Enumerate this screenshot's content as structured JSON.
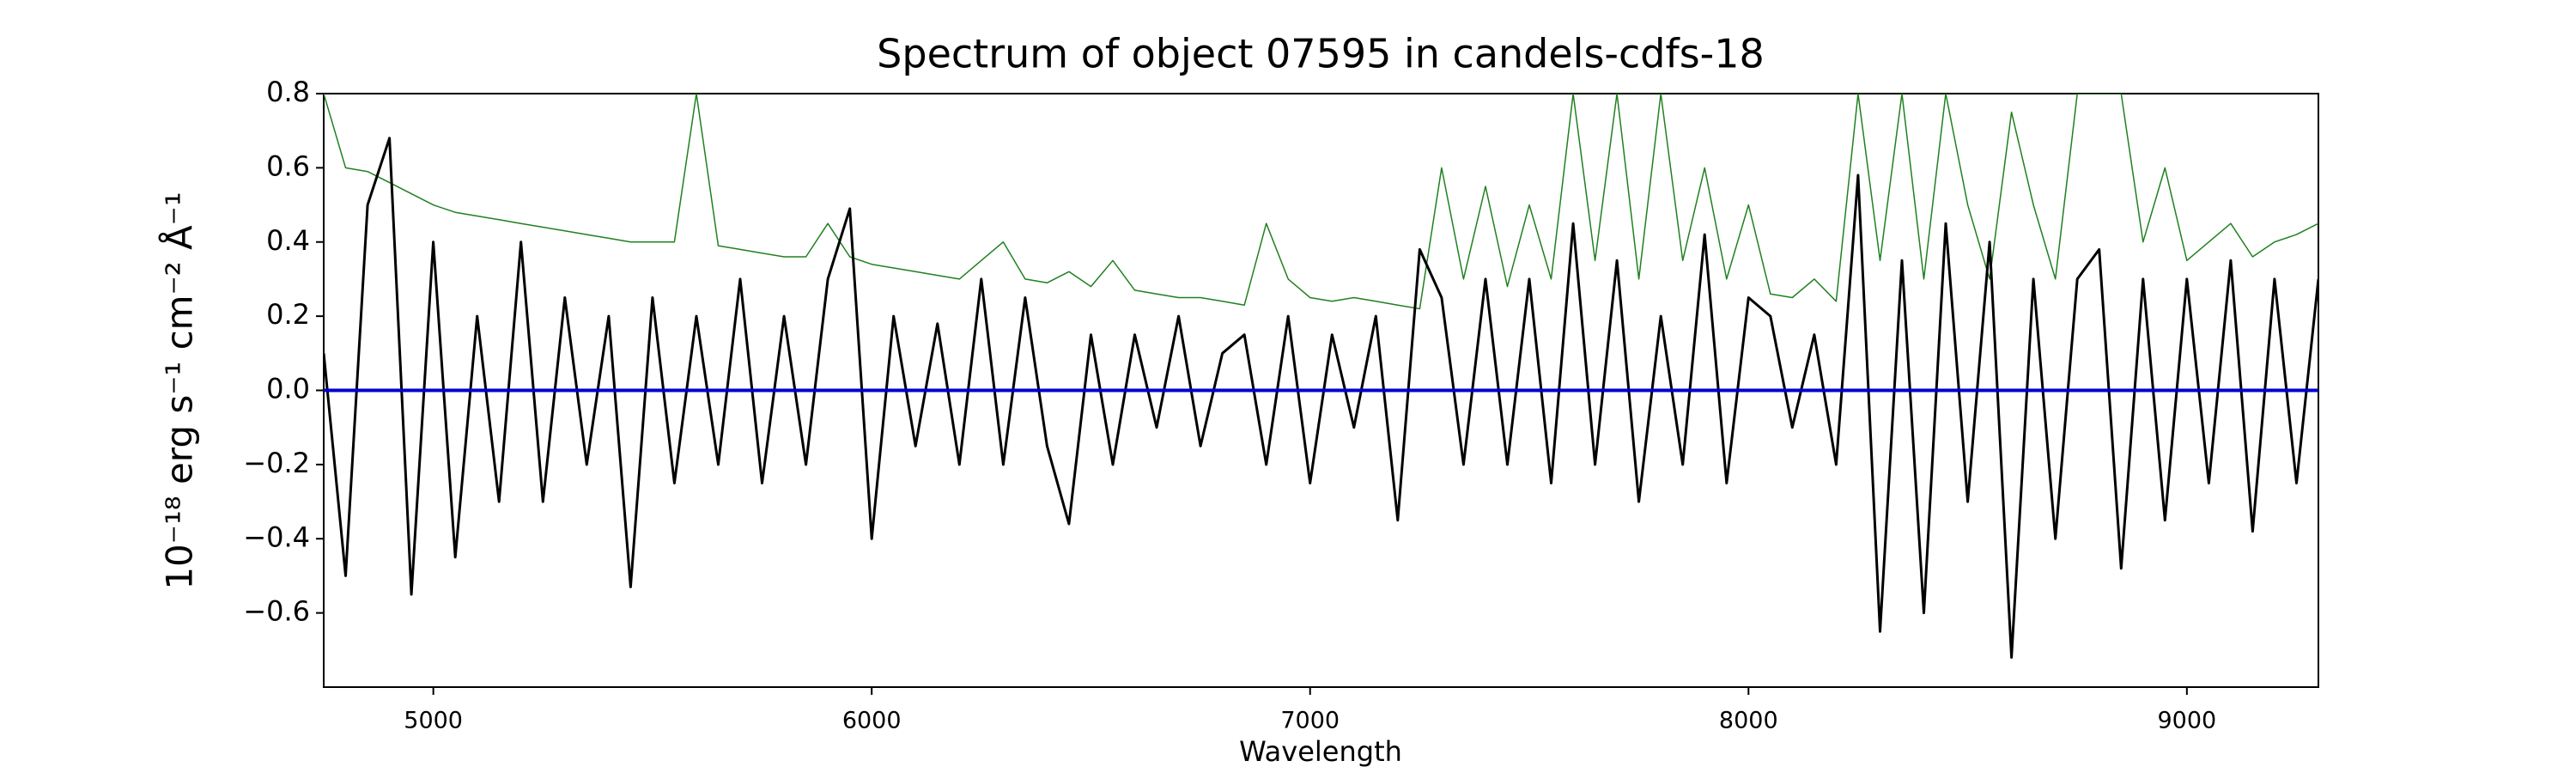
{
  "chart_data": {
    "type": "line",
    "title": "Spectrum of object 07595 in candels-cdfs-18",
    "x_label": "Wavelength",
    "y_label": "10⁻¹⁸ erg s⁻¹ cm⁻² Å⁻¹",
    "xlim": [
      4750,
      9300
    ],
    "ylim": [
      -0.8,
      0.8
    ],
    "xticks": [
      5000,
      6000,
      7000,
      8000,
      9000
    ],
    "yticks": [
      {
        "value": -0.6,
        "label": "−0.6"
      },
      {
        "value": -0.4,
        "label": "−0.4"
      },
      {
        "value": -0.2,
        "label": "−0.2"
      },
      {
        "value": 0,
        "label": "0.0"
      },
      0.2,
      0.4,
      0.6,
      0.8
    ],
    "grid": false,
    "x": [
      4750,
      4800,
      4850,
      4900,
      4950,
      5000,
      5050,
      5100,
      5150,
      5200,
      5250,
      5300,
      5350,
      5400,
      5450,
      5500,
      5550,
      5600,
      5650,
      5700,
      5750,
      5800,
      5850,
      5900,
      5950,
      6000,
      6050,
      6100,
      6150,
      6200,
      6250,
      6300,
      6350,
      6400,
      6450,
      6500,
      6550,
      6600,
      6650,
      6700,
      6750,
      6800,
      6850,
      6900,
      6950,
      7000,
      7050,
      7100,
      7150,
      7200,
      7250,
      7300,
      7350,
      7400,
      7450,
      7500,
      7550,
      7600,
      7650,
      7700,
      7750,
      7800,
      7850,
      7900,
      7950,
      8000,
      8050,
      8100,
      8150,
      8200,
      8250,
      8300,
      8350,
      8400,
      8450,
      8500,
      8550,
      8600,
      8650,
      8700,
      8750,
      8800,
      8850,
      8900,
      8950,
      9000,
      9050,
      9100,
      9150,
      9200,
      9250,
      9300
    ],
    "series": [
      {
        "color": "#208020",
        "width": 1.5,
        "values": [
          0.8,
          0.6,
          0.59,
          0.56,
          0.53,
          0.5,
          0.48,
          0.47,
          0.46,
          0.45,
          0.44,
          0.43,
          0.42,
          0.41,
          0.4,
          0.4,
          0.4,
          0.8,
          0.39,
          0.38,
          0.37,
          0.36,
          0.36,
          0.45,
          0.36,
          0.34,
          0.33,
          0.32,
          0.31,
          0.3,
          0.35,
          0.4,
          0.3,
          0.29,
          0.32,
          0.28,
          0.35,
          0.27,
          0.26,
          0.25,
          0.25,
          0.24,
          0.23,
          0.45,
          0.3,
          0.25,
          0.24,
          0.25,
          0.24,
          0.23,
          0.22,
          0.6,
          0.3,
          0.55,
          0.28,
          0.5,
          0.3,
          0.8,
          0.35,
          0.8,
          0.3,
          0.8,
          0.35,
          0.6,
          0.3,
          0.5,
          0.26,
          0.25,
          0.3,
          0.24,
          0.8,
          0.35,
          0.8,
          0.3,
          0.8,
          0.5,
          0.3,
          0.75,
          0.5,
          0.3,
          0.8,
          0.8,
          0.8,
          0.4,
          0.6,
          0.35,
          0.4,
          0.45,
          0.36,
          0.4,
          0.42,
          0.45
        ]
      },
      {
        "color": "#000000",
        "width": 3,
        "values": [
          0.1,
          -0.5,
          0.5,
          0.68,
          -0.55,
          0.4,
          -0.45,
          0.2,
          -0.3,
          0.4,
          -0.3,
          0.25,
          -0.2,
          0.2,
          -0.53,
          0.25,
          -0.25,
          0.2,
          -0.2,
          0.3,
          -0.25,
          0.2,
          -0.2,
          0.3,
          0.49,
          -0.4,
          0.2,
          -0.15,
          0.18,
          -0.2,
          0.3,
          -0.2,
          0.25,
          -0.15,
          -0.36,
          0.15,
          -0.2,
          0.15,
          -0.1,
          0.2,
          -0.15,
          0.1,
          0.15,
          -0.2,
          0.2,
          -0.25,
          0.15,
          -0.1,
          0.2,
          -0.35,
          0.38,
          0.25,
          -0.2,
          0.3,
          -0.2,
          0.3,
          -0.25,
          0.45,
          -0.2,
          0.35,
          -0.3,
          0.2,
          -0.2,
          0.42,
          -0.25,
          0.25,
          0.2,
          -0.1,
          0.15,
          -0.2,
          0.58,
          -0.65,
          0.35,
          -0.6,
          0.45,
          -0.3,
          0.4,
          -0.72,
          0.3,
          -0.4,
          0.3,
          0.38,
          -0.48,
          0.3,
          -0.35,
          0.3,
          -0.25,
          0.35,
          -0.38,
          0.3,
          -0.25,
          0.3
        ]
      },
      {
        "color": "#0000cc",
        "width": 4,
        "values": [
          0,
          0,
          0,
          0,
          0,
          0,
          0,
          0,
          0,
          0,
          0,
          0,
          0,
          0,
          0,
          0,
          0,
          0,
          0,
          0,
          0,
          0,
          0,
          0,
          0,
          0,
          0,
          0,
          0,
          0,
          0,
          0,
          0,
          0,
          0,
          0,
          0,
          0,
          0,
          0,
          0,
          0,
          0,
          0,
          0,
          0,
          0,
          0,
          0,
          0,
          0,
          0,
          0,
          0,
          0,
          0,
          0,
          0,
          0,
          0,
          0,
          0,
          0,
          0,
          0,
          0,
          0,
          0,
          0,
          0,
          0,
          0,
          0,
          0,
          0,
          0,
          0,
          0,
          0,
          0,
          0,
          0,
          0,
          0,
          0,
          0,
          0,
          0,
          0,
          0,
          0,
          0
        ]
      }
    ]
  }
}
